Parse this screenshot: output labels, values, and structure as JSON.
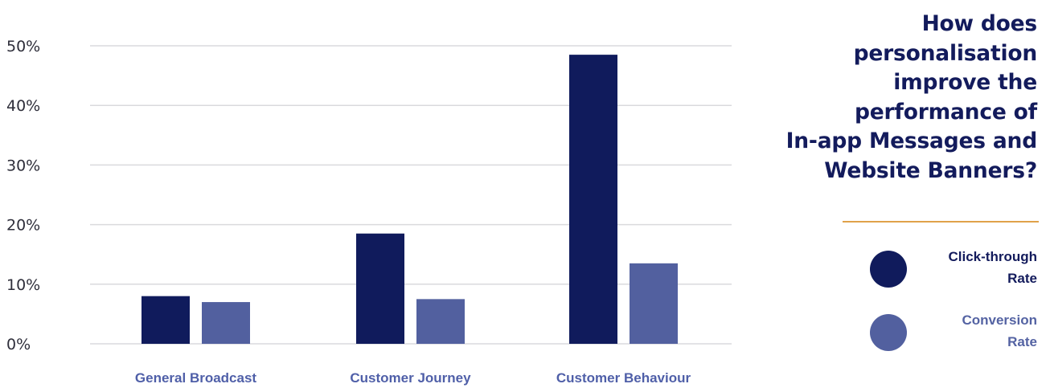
{
  "chart_data": {
    "type": "bar",
    "title": "How does\npersonalisation\nimprove the\nperformance of\nIn-app Messages and\nWebsite Banners?",
    "categories": [
      "General Broadcast",
      "Customer Journey",
      "Customer Behaviour"
    ],
    "series": [
      {
        "name": "Click-through Rate",
        "values": [
          8,
          18.5,
          48.5
        ],
        "color": "#101b5c"
      },
      {
        "name": "Conversion Rate",
        "values": [
          7,
          7.5,
          13.5
        ],
        "color": "#52609f"
      }
    ],
    "yticks": [
      "0%",
      "10%",
      "20%",
      "30%",
      "40%",
      "50%"
    ],
    "ylim": [
      0,
      50
    ],
    "grid": true,
    "legend_position": "right",
    "colors": {
      "title": "#131b5c",
      "category_label": "#4f5fa8",
      "gridline": "#dadadd",
      "divider": "#e0a24a",
      "legend_click": "#131b5c",
      "legend_conversion": "#5463a3"
    }
  }
}
